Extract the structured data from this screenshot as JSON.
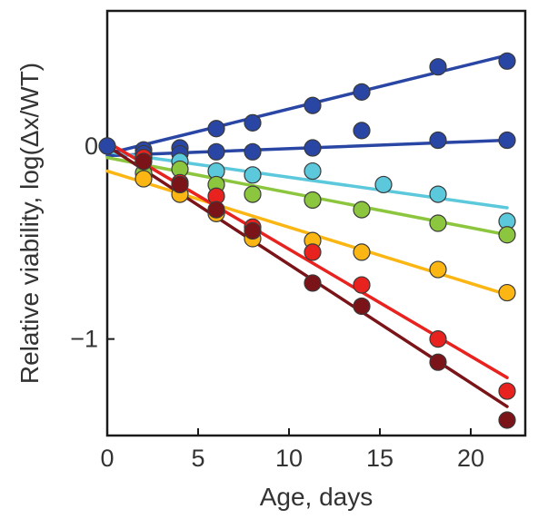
{
  "chart_data": {
    "type": "scatter",
    "xlabel": "Age, days",
    "ylabel": "Relative viability, log(Δx/WT)",
    "xlim": [
      0,
      23
    ],
    "ylim": [
      -1.5,
      0.7
    ],
    "xticks": [
      0,
      5,
      10,
      15,
      20
    ],
    "yticks": [
      {
        "value": 0,
        "label": "0"
      },
      {
        "value": -1,
        "label": "−1"
      }
    ],
    "grid": false,
    "legend": "none",
    "series": [
      {
        "color": "#2a46a4",
        "fit": [
          [
            0,
            -0.04
          ],
          [
            22,
            0.47
          ]
        ],
        "points": [
          [
            0,
            0
          ],
          [
            2,
            -0.02
          ],
          [
            4,
            -0.01
          ],
          [
            6,
            0.09
          ],
          [
            8,
            0.12
          ],
          [
            11.3,
            0.21
          ],
          [
            14,
            0.28
          ],
          [
            18.2,
            0.41
          ],
          [
            22,
            0.44
          ]
        ]
      },
      {
        "color": "#2a46a4",
        "fit": [
          [
            0,
            -0.05
          ],
          [
            22,
            0.03
          ]
        ],
        "points": [
          [
            2,
            -0.04
          ],
          [
            4,
            -0.04
          ],
          [
            6,
            -0.03
          ],
          [
            8,
            -0.03
          ],
          [
            11.3,
            -0.01
          ],
          [
            14,
            0.08
          ],
          [
            18.2,
            0.03
          ],
          [
            22,
            0.03
          ]
        ]
      },
      {
        "color": "#5bc8dc",
        "fit": [
          [
            0,
            -0.03
          ],
          [
            22,
            -0.32
          ]
        ],
        "points": [
          [
            2,
            -0.06
          ],
          [
            4,
            -0.08
          ],
          [
            6,
            -0.13
          ],
          [
            8,
            -0.15
          ],
          [
            11.3,
            -0.13
          ],
          [
            15.2,
            -0.2
          ],
          [
            18.2,
            -0.25
          ],
          [
            22,
            -0.39
          ]
        ]
      },
      {
        "color": "#8cc63f",
        "fit": [
          [
            0,
            -0.06
          ],
          [
            22,
            -0.46
          ]
        ],
        "points": [
          [
            2,
            -0.14
          ],
          [
            4,
            -0.12
          ],
          [
            6,
            -0.2
          ],
          [
            8,
            -0.25
          ],
          [
            11.3,
            -0.28
          ],
          [
            14,
            -0.33
          ],
          [
            18.2,
            -0.4
          ],
          [
            22,
            -0.46
          ]
        ]
      },
      {
        "color": "#fbb614",
        "fit": [
          [
            0,
            -0.13
          ],
          [
            22,
            -0.77
          ]
        ],
        "points": [
          [
            2,
            -0.17
          ],
          [
            4,
            -0.25
          ],
          [
            6,
            -0.35
          ],
          [
            8,
            -0.48
          ],
          [
            11.3,
            -0.49
          ],
          [
            14,
            -0.55
          ],
          [
            18.2,
            -0.64
          ],
          [
            22,
            -0.76
          ]
        ]
      },
      {
        "color": "#e8221e",
        "fit": [
          [
            0,
            0.02
          ],
          [
            22,
            -1.2
          ]
        ],
        "points": [
          [
            2,
            -0.06
          ],
          [
            4,
            -0.19
          ],
          [
            6,
            -0.26
          ],
          [
            8,
            -0.42
          ],
          [
            11.3,
            -0.55
          ],
          [
            14,
            -0.72
          ],
          [
            18.2,
            -1.0
          ],
          [
            22,
            -1.27
          ]
        ]
      },
      {
        "color": "#7a1418",
        "fit": [
          [
            0,
            0.0
          ],
          [
            22,
            -1.35
          ]
        ],
        "points": [
          [
            2,
            -0.08
          ],
          [
            4,
            -0.2
          ],
          [
            6,
            -0.33
          ],
          [
            8,
            -0.44
          ],
          [
            11.3,
            -0.71
          ],
          [
            14,
            -0.83
          ],
          [
            18.2,
            -1.12
          ],
          [
            22,
            -1.42
          ]
        ]
      }
    ]
  }
}
